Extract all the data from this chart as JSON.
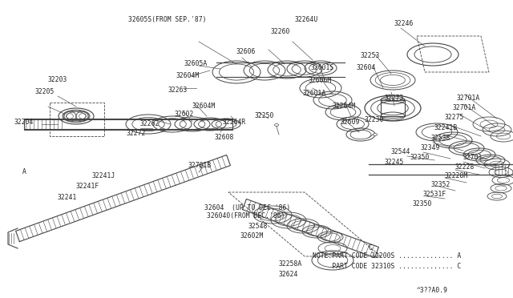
{
  "bg_color": "#ffffff",
  "line_color": "#444444",
  "text_color": "#222222",
  "note1": "NOTE:PART CODE 32200S .............. A",
  "note2": "     PART CODE 32310S .............. C",
  "diagram_id": "^3??A0.9",
  "figsize": [
    6.4,
    3.72
  ],
  "dpi": 100
}
